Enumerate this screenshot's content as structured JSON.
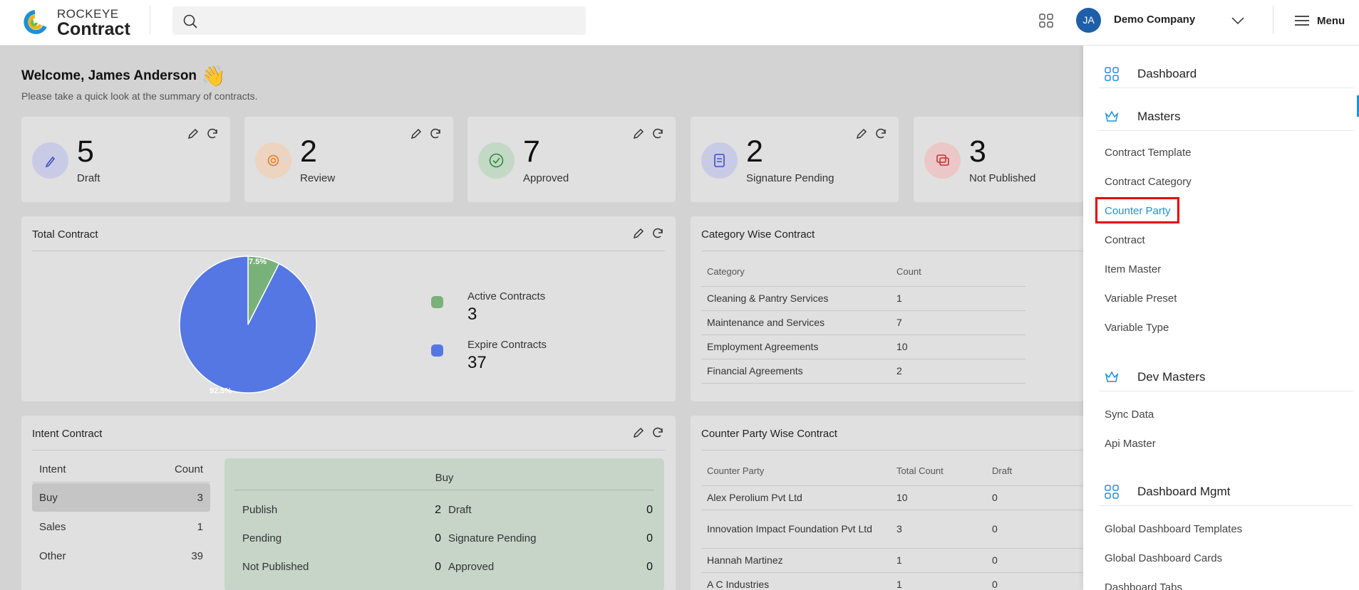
{
  "app": {
    "brand_top": "ROCKEYE",
    "brand_bottom": "Contract"
  },
  "header": {
    "avatar_initials": "JA",
    "company": "Demo Company",
    "menu_label": "Menu"
  },
  "welcome": {
    "title": "Welcome, James Anderson",
    "emoji": "👋",
    "subtitle": "Please take a quick look at the summary of contracts."
  },
  "stats": [
    {
      "value": "5",
      "label": "Draft",
      "color": "#c9cbe6"
    },
    {
      "value": "2",
      "label": "Review",
      "color": "#ecd4c0"
    },
    {
      "value": "7",
      "label": "Approved",
      "color": "#c4d8c6"
    },
    {
      "value": "2",
      "label": "Signature Pending",
      "color": "#c9cbe6"
    },
    {
      "value": "3",
      "label": "Not Published",
      "color": "#ecc7c7"
    }
  ],
  "total_contract": {
    "title": "Total Contract",
    "chart_data": {
      "type": "pie",
      "slices": [
        {
          "name": "Active Contracts",
          "value": 3,
          "percent_label": "7.5%",
          "color": "#79b17a"
        },
        {
          "name": "Expire Contracts",
          "value": 37,
          "percent_label": "92.5%",
          "color": "#5577e4"
        }
      ]
    },
    "legend": [
      {
        "label": "Active Contracts",
        "value": "3"
      },
      {
        "label": "Expire Contracts",
        "value": "37"
      }
    ]
  },
  "category_wise": {
    "title": "Category Wise Contract",
    "columns": [
      "Category",
      "Count"
    ],
    "rows": [
      [
        "Cleaning & Pantry Services",
        "1"
      ],
      [
        "Maintenance and Services",
        "7"
      ],
      [
        "Employment Agreements",
        "10"
      ],
      [
        "Financial Agreements",
        "2"
      ]
    ]
  },
  "intent": {
    "title": "Intent Contract",
    "columns": [
      "Intent",
      "Count"
    ],
    "rows": [
      [
        "Buy",
        "3"
      ],
      [
        "Sales",
        "1"
      ],
      [
        "Other",
        "39"
      ]
    ],
    "detail_title": "Buy",
    "detail": {
      "left": [
        [
          "Publish",
          "2"
        ],
        [
          "Pending",
          "0"
        ],
        [
          "Not Published",
          "0"
        ]
      ],
      "right": [
        [
          "Draft",
          "0"
        ],
        [
          "Signature Pending",
          "0"
        ],
        [
          "Approved",
          "0"
        ]
      ]
    }
  },
  "counter_party_wise": {
    "title": "Counter Party Wise Contract",
    "columns": [
      "Counter Party",
      "Total Count",
      "Draft"
    ],
    "rows": [
      [
        "Alex Perolium Pvt Ltd",
        "10",
        "0"
      ],
      [
        "Innovation Impact Foundation Pvt Ltd",
        "3",
        "0"
      ],
      [
        "Hannah Martinez",
        "1",
        "0"
      ],
      [
        "A C Industries",
        "1",
        "0"
      ]
    ]
  },
  "drawer": {
    "dashboard": "Dashboard",
    "masters": "Masters",
    "masters_items": [
      "Contract Template",
      "Contract Category",
      "Counter Party",
      "Contract",
      "Item Master",
      "Variable Preset",
      "Variable Type"
    ],
    "dev_masters": "Dev Masters",
    "dev_items": [
      "Sync Data",
      "Api Master"
    ],
    "dashboard_mgmt": "Dashboard Mgmt",
    "mgmt_items": [
      "Global Dashboard Templates",
      "Global Dashboard Cards",
      "Dashboard Tabs"
    ]
  },
  "colors": {
    "accent": "#1e90d6",
    "highlight": "#e60000"
  }
}
